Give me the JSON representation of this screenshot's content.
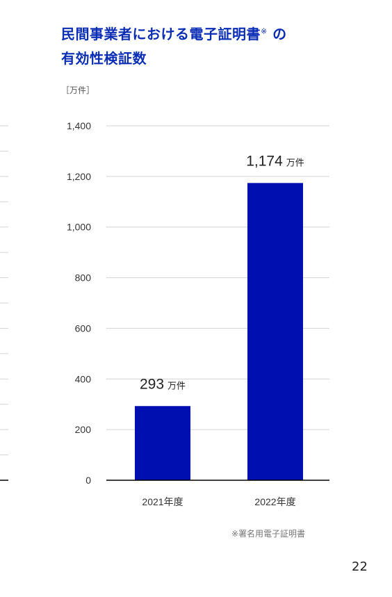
{
  "title": {
    "line1": "民間事業者における電子証明書",
    "note_mark": "※",
    "line1_suffix": " の",
    "line2": "有効性検証数"
  },
  "unit_label": "［万件］",
  "footnote": "※署名用電子証明書",
  "page_number": "22",
  "colors": {
    "bar": "#0010b0",
    "title": "#0a2db4",
    "grid": "#d3d3d3",
    "axis": "#000000"
  },
  "chart_data": {
    "type": "bar",
    "categories": [
      "2021年度",
      "2022年度"
    ],
    "values": [
      293,
      1174
    ],
    "data_labels": [
      {
        "value": "293",
        "unit": "万件"
      },
      {
        "value": "1,174",
        "unit": "万件"
      }
    ],
    "yticks": [
      0,
      200,
      400,
      600,
      800,
      1000,
      1200,
      1400
    ],
    "ytick_labels": [
      "0",
      "200",
      "400",
      "600",
      "800",
      "1,000",
      "1,200",
      "1,400"
    ],
    "ylim": [
      0,
      1400
    ],
    "grid": true,
    "ylabel": "［万件］"
  }
}
